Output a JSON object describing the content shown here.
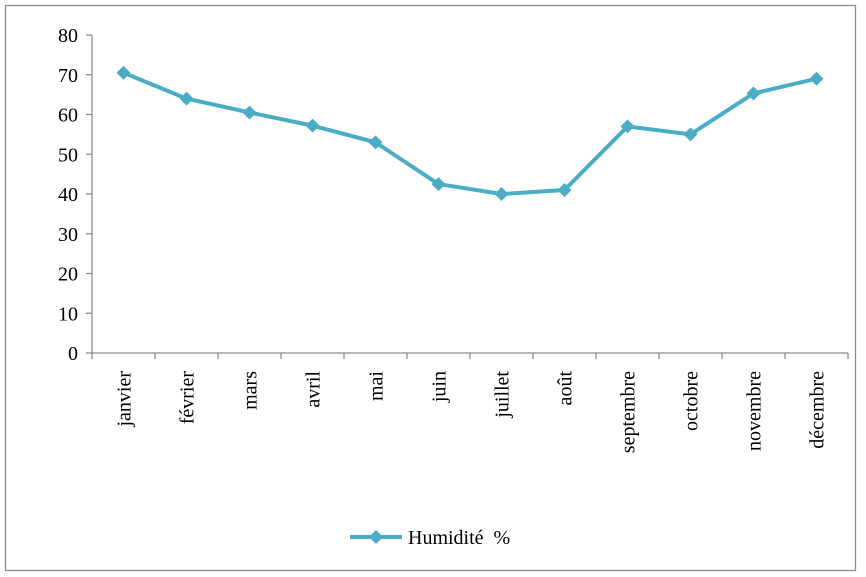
{
  "chart_data": {
    "type": "line",
    "categories": [
      "janvier",
      "février",
      "mars",
      "avril",
      "mai",
      "juin",
      "juillet",
      "août",
      "septembre",
      "octobre",
      "novembre",
      "décembre"
    ],
    "series": [
      {
        "name": "Humidité  %",
        "values": [
          70.5,
          64,
          60.5,
          57.2,
          53,
          42.5,
          40,
          41,
          57,
          55,
          65.3,
          69
        ],
        "color": "#4bacc6",
        "marker": "diamond"
      }
    ],
    "yticks": [
      "0",
      "10",
      "20",
      "30",
      "40",
      "50",
      "60",
      "70",
      "80"
    ],
    "ylim": [
      0,
      80
    ],
    "grid": false,
    "legend_position": "bottom"
  }
}
